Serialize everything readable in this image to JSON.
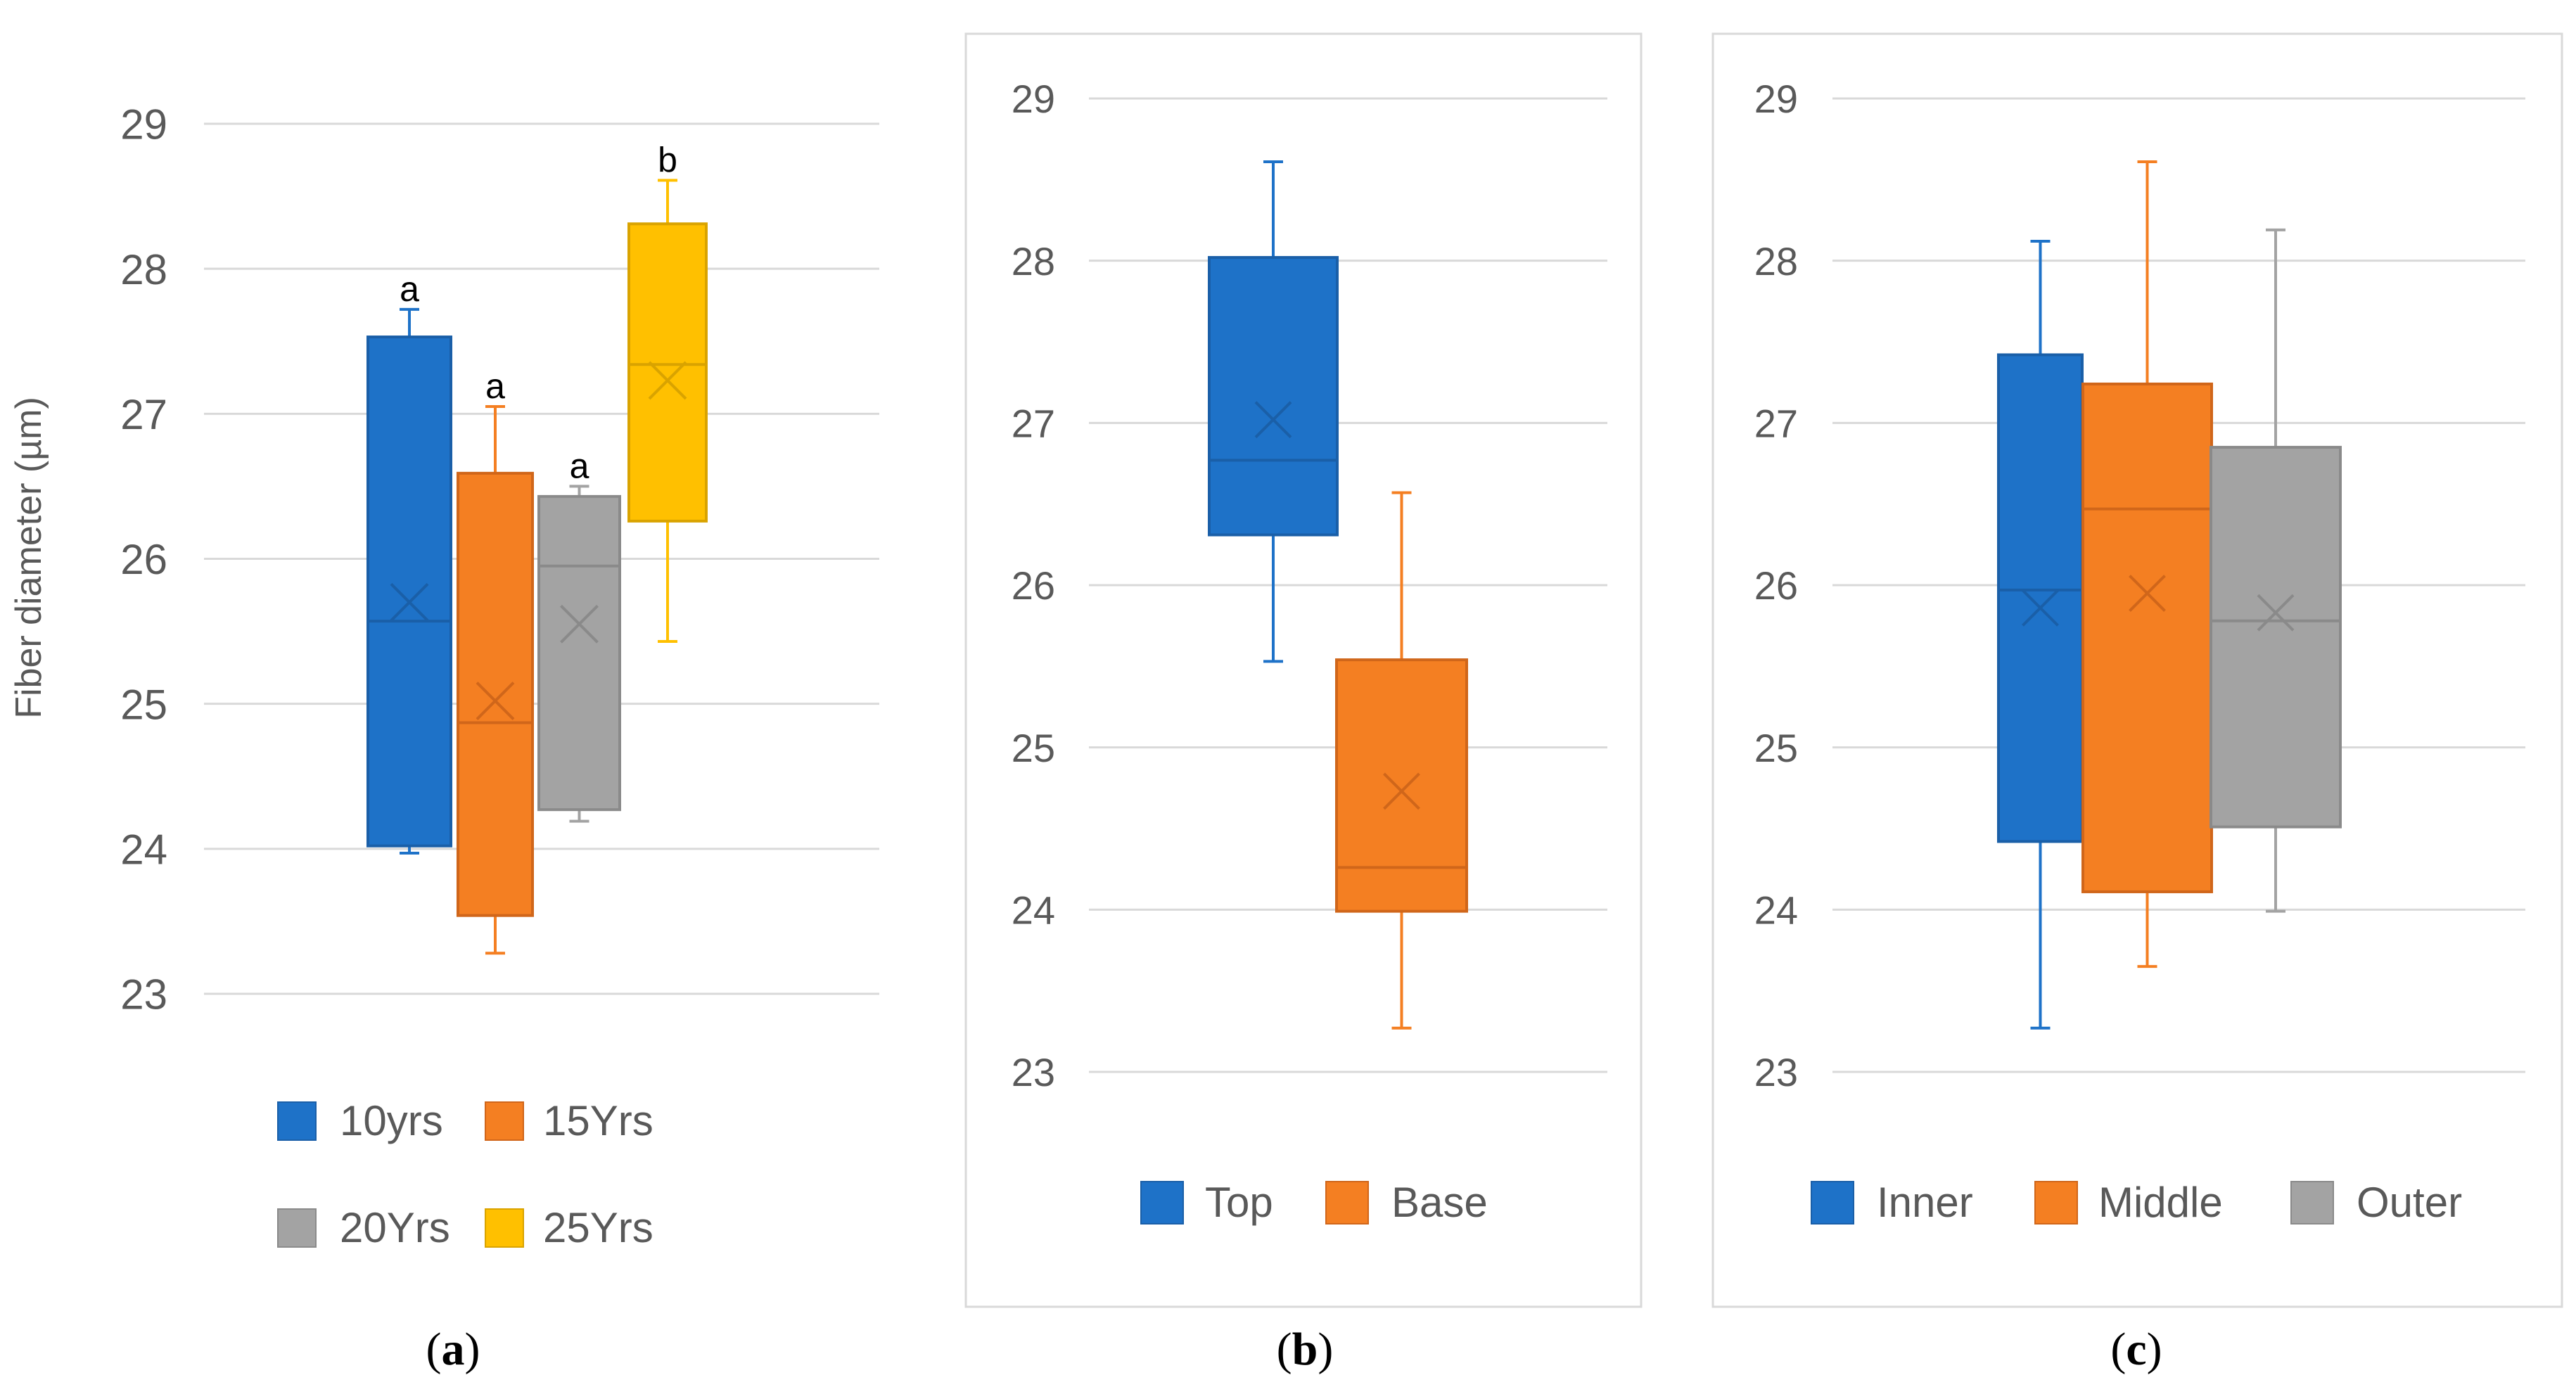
{
  "colors": {
    "blue": "#1E72C8",
    "orange": "#F47F22",
    "gray": "#A3A3A3",
    "yellow": "#FFC000",
    "grid": "#D9D9D9",
    "tick_text": "#595959"
  },
  "chart_data": [
    {
      "id": "a",
      "type": "box",
      "caption_label": "a",
      "ylabel": "Fiber diameter (µm)",
      "ylim": [
        23,
        29
      ],
      "yticks": [
        "23",
        "24",
        "25",
        "26",
        "27",
        "28",
        "29"
      ],
      "grid": true,
      "legend_position": "bottom",
      "series": [
        {
          "name": "10yrs",
          "color": "#1E72C8",
          "min": 23.97,
          "q1": 24.02,
          "median": 25.57,
          "q3": 27.53,
          "max": 27.72,
          "mean": 25.7,
          "annotation": "a"
        },
        {
          "name": "15Yrs",
          "color": "#F47F22",
          "min": 23.28,
          "q1": 23.54,
          "median": 24.87,
          "q3": 26.59,
          "max": 27.05,
          "mean": 25.02,
          "annotation": "a"
        },
        {
          "name": "20Yrs",
          "color": "#A3A3A3",
          "min": 24.19,
          "q1": 24.27,
          "median": 25.95,
          "q3": 26.43,
          "max": 26.5,
          "mean": 25.55,
          "annotation": "a"
        },
        {
          "name": "25Yrs",
          "color": "#FFC000",
          "min": 25.43,
          "q1": 26.26,
          "median": 27.34,
          "q3": 28.31,
          "max": 28.61,
          "mean": 27.23,
          "annotation": "b"
        }
      ]
    },
    {
      "id": "b",
      "type": "box",
      "caption_label": "b",
      "ylabel": "",
      "ylim": [
        23,
        29
      ],
      "yticks": [
        "23",
        "24",
        "25",
        "26",
        "27",
        "28",
        "29"
      ],
      "grid": true,
      "legend_position": "bottom",
      "series": [
        {
          "name": "Top",
          "color": "#1E72C8",
          "min": 25.53,
          "q1": 26.31,
          "median": 26.77,
          "q3": 28.02,
          "max": 28.61,
          "mean": 27.02
        },
        {
          "name": "Base",
          "color": "#F47F22",
          "min": 23.27,
          "q1": 23.99,
          "median": 24.26,
          "q3": 25.54,
          "max": 26.57,
          "mean": 24.73
        }
      ]
    },
    {
      "id": "c",
      "type": "box",
      "caption_label": "c",
      "ylabel": "",
      "ylim": [
        23,
        29
      ],
      "yticks": [
        "23",
        "24",
        "25",
        "26",
        "27",
        "28",
        "29"
      ],
      "grid": true,
      "legend_position": "bottom",
      "series": [
        {
          "name": "Inner",
          "color": "#1E72C8",
          "min": 23.27,
          "q1": 24.42,
          "median": 25.97,
          "q3": 27.42,
          "max": 28.12,
          "mean": 25.86
        },
        {
          "name": "Middle",
          "color": "#F47F22",
          "min": 23.65,
          "q1": 24.11,
          "median": 26.47,
          "q3": 27.24,
          "max": 28.61,
          "mean": 25.95
        },
        {
          "name": "Outer",
          "color": "#A3A3A3",
          "min": 23.99,
          "q1": 24.51,
          "median": 25.78,
          "q3": 26.85,
          "max": 28.19,
          "mean": 25.83
        }
      ]
    }
  ]
}
